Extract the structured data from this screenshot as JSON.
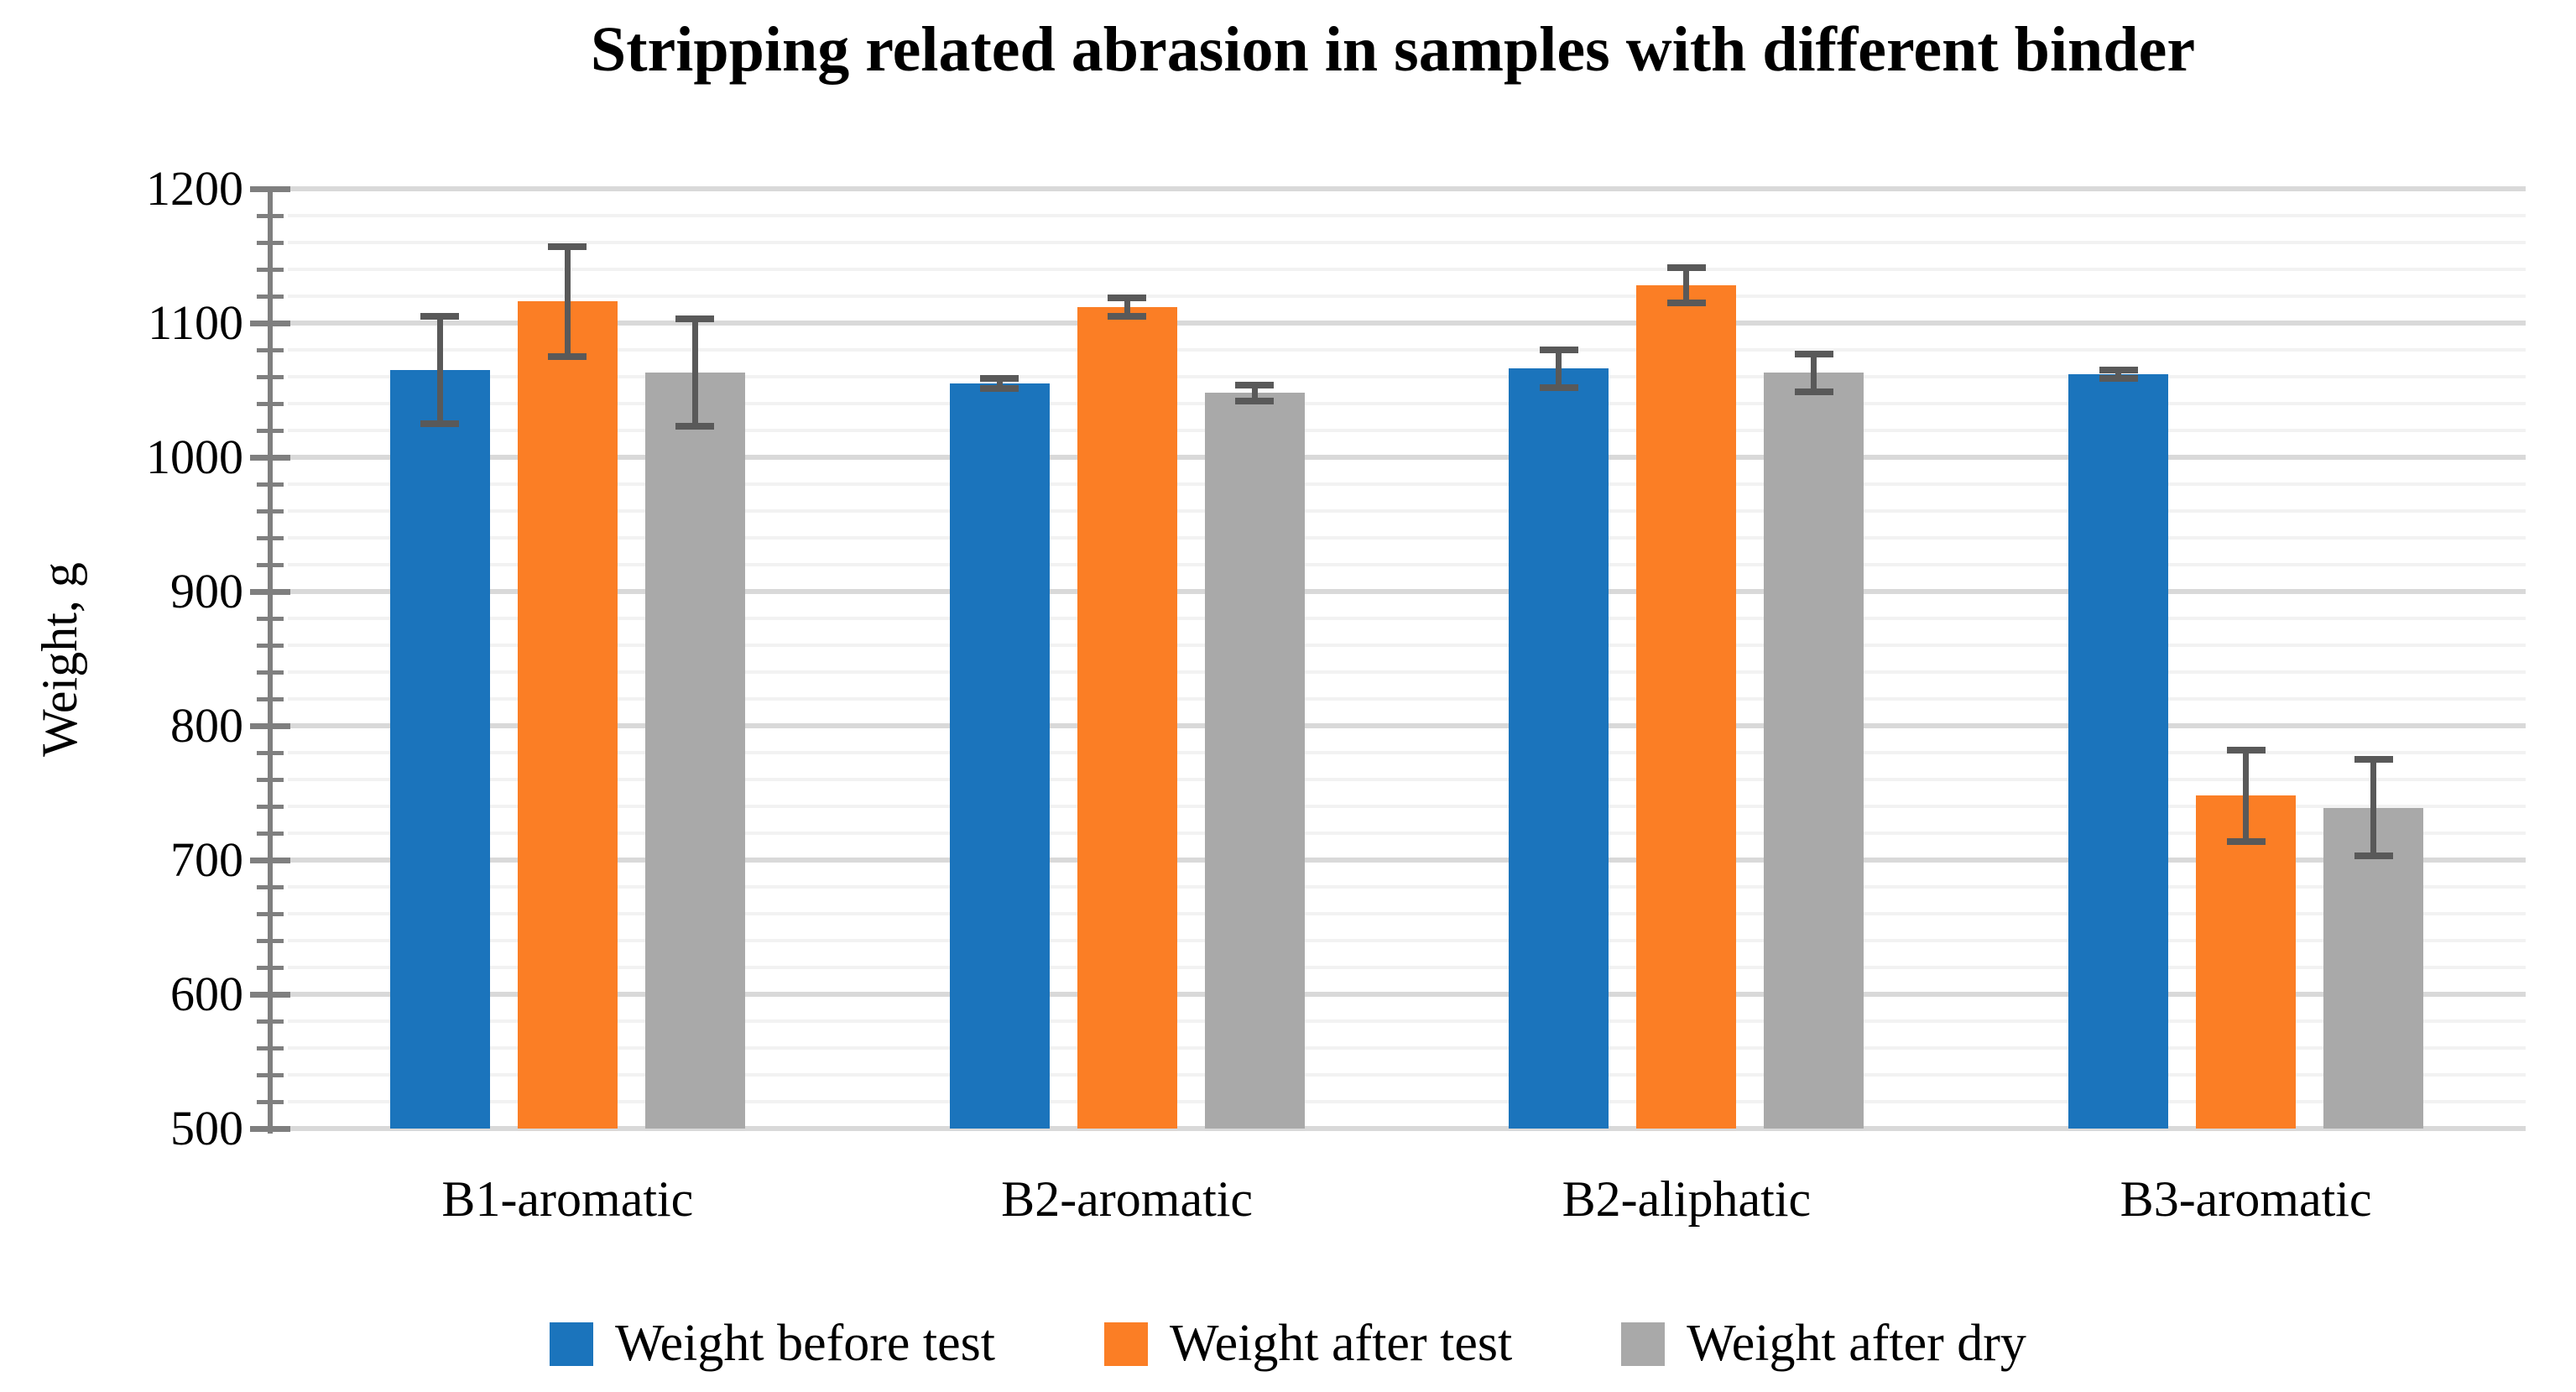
{
  "title": "Stripping related abrasion in samples with different binder",
  "y_axis": {
    "title": "Weight, g",
    "min": 500,
    "max": 1200,
    "major_step": 100,
    "minor_step": 20,
    "tick_labels": [
      "1200",
      "1100",
      "1000",
      "900",
      "800",
      "700",
      "600",
      "500"
    ]
  },
  "chart_data": {
    "type": "bar",
    "title": "Stripping related abrasion in samples with different binder",
    "xlabel": "",
    "ylabel": "Weight, g",
    "ylim": [
      500,
      1200
    ],
    "grid": true,
    "legend_position": "bottom",
    "categories": [
      "B1-aromatic",
      "B2-aromatic",
      "B2-aliphatic",
      "B3-aromatic"
    ],
    "series": [
      {
        "name": "Weight before test",
        "color": "#1B74BC",
        "values": [
          1065,
          1055,
          1066,
          1062
        ],
        "errors": [
          40,
          4,
          14,
          3
        ]
      },
      {
        "name": "Weight after test",
        "color": "#FB7E25",
        "values": [
          1116,
          1112,
          1128,
          748
        ],
        "errors": [
          41,
          7,
          13,
          34
        ]
      },
      {
        "name": "Weight after dry",
        "color": "#A9A9A9",
        "values": [
          1063,
          1048,
          1063,
          739
        ],
        "errors": [
          40,
          6,
          14,
          36
        ]
      }
    ],
    "error_bar_color": "#595959"
  },
  "colors": {
    "axis": "#7F7F7F",
    "grid_major": "#D9D9D9",
    "grid_minor": "#F2F2F2",
    "text": "#000000",
    "background": "#FFFFFF"
  }
}
